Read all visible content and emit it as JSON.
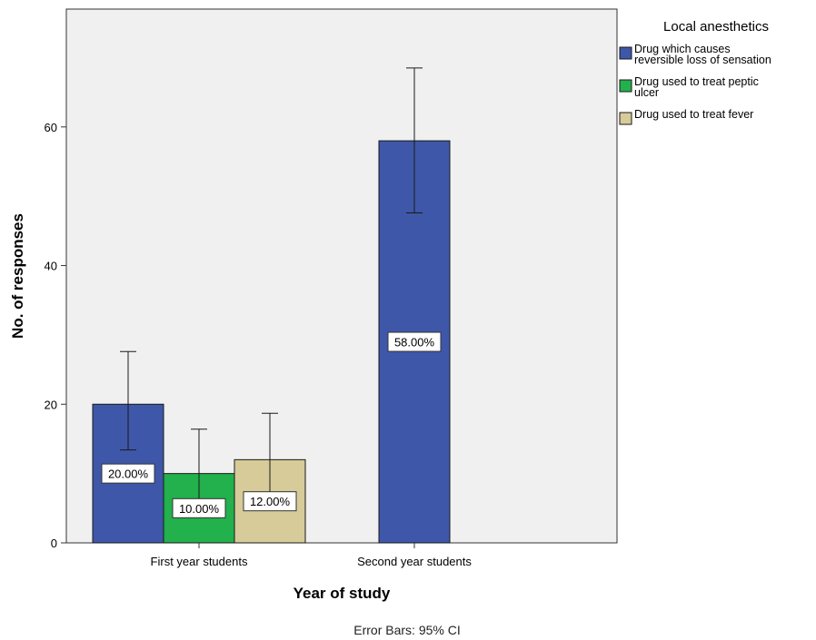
{
  "chart_data": {
    "type": "bar",
    "xlabel": "Year of study",
    "ylabel": "No. of responses",
    "ylim": [
      0,
      77
    ],
    "yticks": [
      0,
      20,
      40,
      60
    ],
    "categories": [
      "First year students",
      "Second year students"
    ],
    "legend_title": "Local anesthetics",
    "legend_position": "right",
    "series": [
      {
        "name": "Drug which causes reversible loss of sensation",
        "legend_lines": [
          "Drug which causes",
          "reversible loss of sensation"
        ],
        "color": "#3F57A8",
        "values": [
          20,
          58
        ],
        "labels": [
          "20.00%",
          "58.00%"
        ],
        "ci_low": [
          13.4,
          47.6
        ],
        "ci_high": [
          27.6,
          68.5
        ]
      },
      {
        "name": "Drug used to treat peptic ulcer",
        "legend_lines": [
          "Drug used to treat peptic",
          "ulcer"
        ],
        "color": "#22B14C",
        "values": [
          10,
          null
        ],
        "labels": [
          "10.00%",
          ""
        ],
        "ci_low": [
          4,
          null
        ],
        "ci_high": [
          16.4,
          null
        ]
      },
      {
        "name": "Drug used to treat fever",
        "legend_lines": [
          "Drug used to treat fever"
        ],
        "color": "#D6CB99",
        "values": [
          12,
          null
        ],
        "labels": [
          "12.00%",
          ""
        ],
        "ci_low": [
          7,
          null
        ],
        "ci_high": [
          18.7,
          null
        ]
      }
    ],
    "note": "Error Bars: 95% CI",
    "plot_background": "#F0F0F0",
    "grid": false
  }
}
